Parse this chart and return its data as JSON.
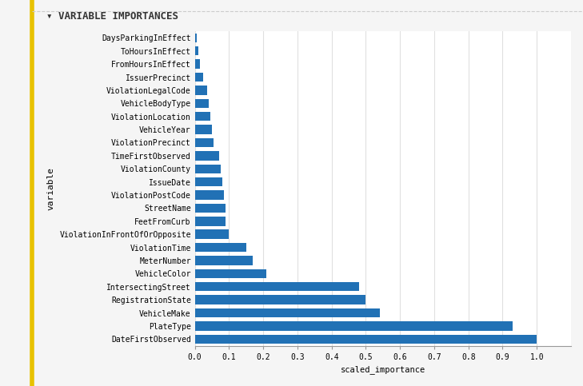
{
  "title": "VARIABLE IMPORTANCES",
  "title_prefix": "▾ ",
  "xlabel": "scaled_importance",
  "ylabel": "variable",
  "bar_color": "#2171b5",
  "background_color": "#f5f5f5",
  "plot_background": "#ffffff",
  "variables": [
    "DaysParkingInEffect",
    "ToHoursInEffect",
    "FromHoursInEffect",
    "IssuerPrecinct",
    "ViolationLegalCode",
    "VehicleBodyType",
    "ViolationLocation",
    "VehicleYear",
    "ViolationPrecinct",
    "TimeFirstObserved",
    "ViolationCounty",
    "IssueDate",
    "ViolationPostCode",
    "StreetName",
    "FeetFromCurb",
    "ViolationInFrontOfOrOpposite",
    "ViolationTime",
    "MeterNumber",
    "VehicleColor",
    "IntersectingStreet",
    "RegistrationState",
    "VehicleMake",
    "PlateType",
    "DateFirstObserved"
  ],
  "values": [
    1.0,
    0.93,
    0.54,
    0.5,
    0.48,
    0.21,
    0.17,
    0.15,
    0.1,
    0.09,
    0.09,
    0.085,
    0.08,
    0.075,
    0.07,
    0.055,
    0.05,
    0.045,
    0.04,
    0.035,
    0.025,
    0.015,
    0.01,
    0.005
  ],
  "xlim": [
    0,
    1.1
  ],
  "xticks": [
    0.0,
    0.1,
    0.2,
    0.3,
    0.4,
    0.5,
    0.6,
    0.7,
    0.8,
    0.9,
    1.0
  ],
  "xtick_labels": [
    "0.0",
    "0.1",
    "0.2",
    "0.3",
    "0.4",
    "0.5",
    "0.6",
    "0.7",
    "0.8",
    "0.9",
    "1.0"
  ],
  "left_line_color": "#e8c200",
  "grid_color": "#e0e0e0",
  "title_fontsize": 9,
  "label_fontsize": 7.5,
  "tick_fontsize": 7,
  "ylabel_fontsize": 8
}
